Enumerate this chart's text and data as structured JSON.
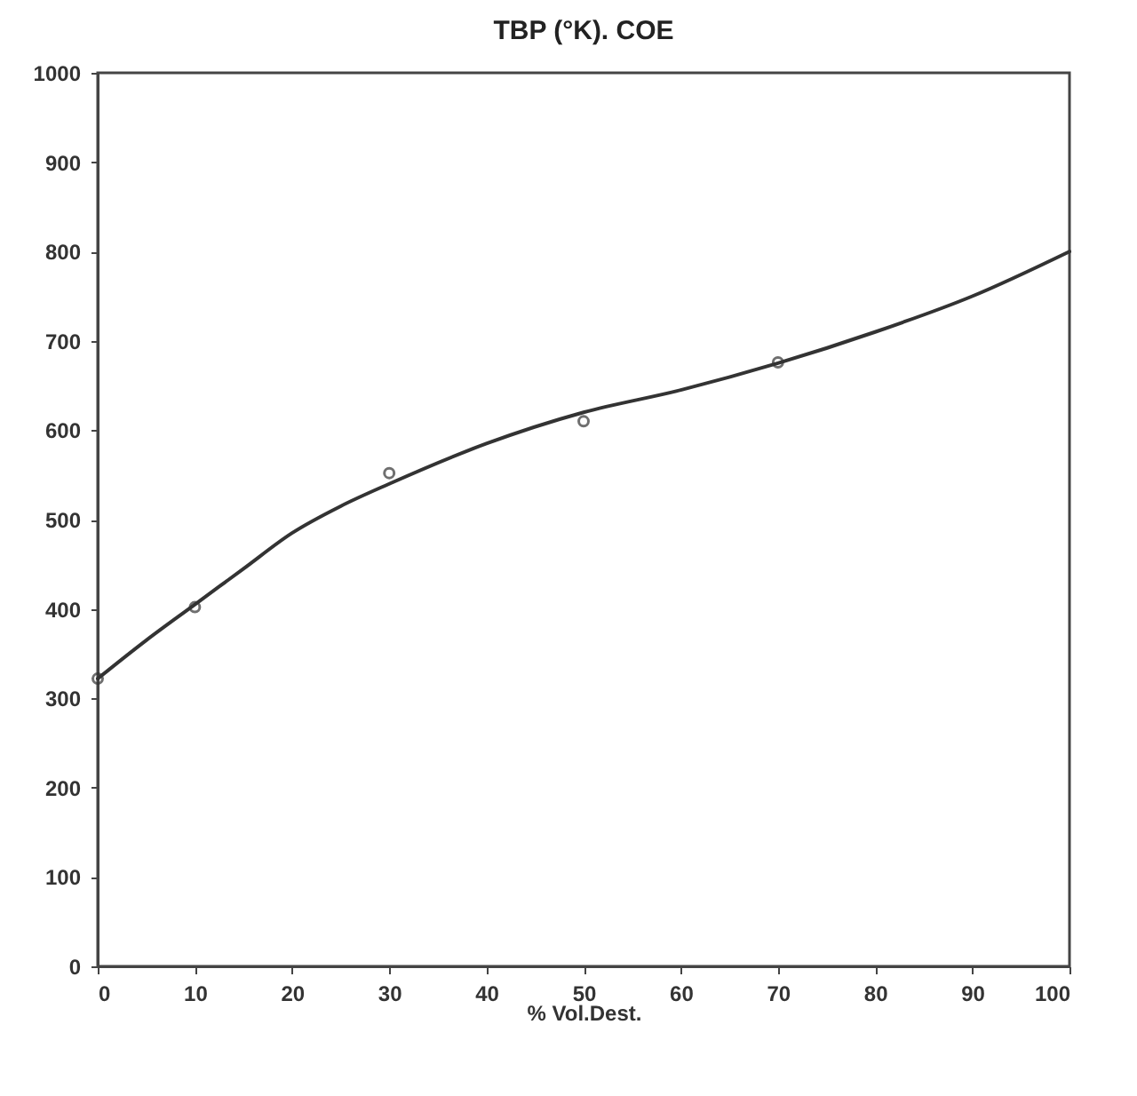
{
  "chart_data": {
    "type": "line",
    "title": "TBP (°K). COE",
    "xlabel": "% Vol.Dest.",
    "xlim": [
      0,
      100
    ],
    "ylim": [
      0,
      1000
    ],
    "xticks": [
      0,
      10,
      20,
      30,
      40,
      50,
      60,
      70,
      80,
      90,
      100
    ],
    "yticks": [
      0,
      100,
      200,
      300,
      400,
      500,
      600,
      700,
      800,
      900,
      1000
    ],
    "grid": false,
    "series": [
      {
        "color": "#333333",
        "marker": "none",
        "x": [
          0,
          5,
          10,
          15,
          20,
          25,
          30,
          40,
          50,
          60,
          70,
          80,
          90,
          100
        ],
        "values": [
          322,
          365,
          405,
          445,
          485,
          515,
          540,
          585,
          620,
          645,
          675,
          710,
          750,
          800
        ]
      },
      {
        "type": "scatter",
        "color": "#333333",
        "marker": "circle",
        "x": [
          0,
          10,
          30,
          50,
          70
        ],
        "values": [
          322,
          402,
          552,
          610,
          676
        ]
      }
    ]
  }
}
